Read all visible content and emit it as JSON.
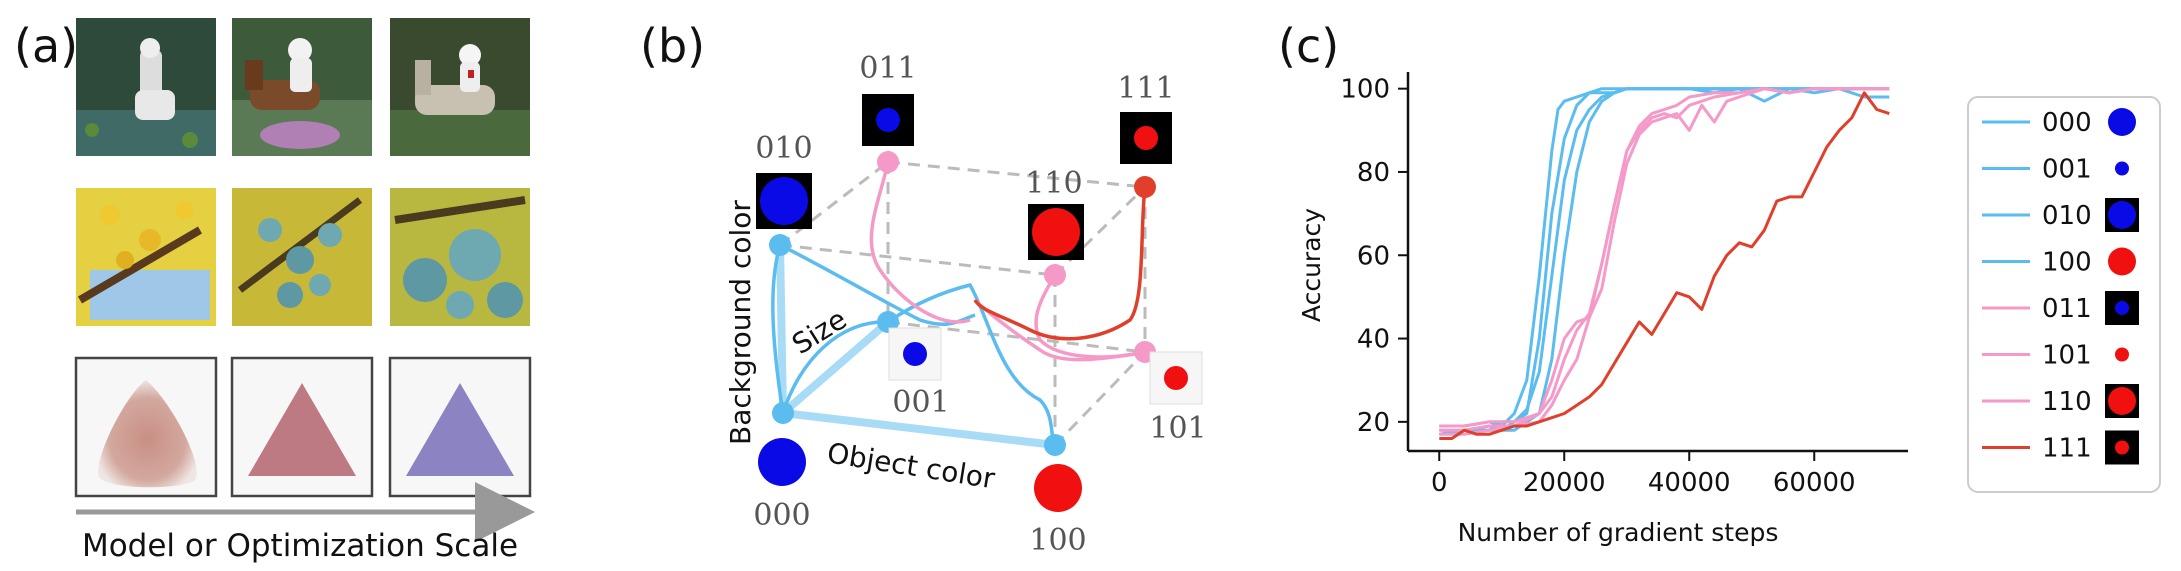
{
  "panels": {
    "a": {
      "label": "(a)",
      "caption": "Model or Optimization Scale"
    },
    "b": {
      "label": "(b)",
      "axis_size": "Size",
      "axis_background": "Background color",
      "axis_object": "Object color",
      "nodes": {
        "n000": "000",
        "n001": "001",
        "n010": "010",
        "n011": "011",
        "n100": "100",
        "n101": "101",
        "n110": "110",
        "n111": "111"
      }
    },
    "c": {
      "label": "(c)"
    }
  },
  "colors": {
    "blue_curve": "#5bbcf0",
    "pink_curve": "#f59ac8",
    "red_curve": "#e0402b",
    "node_blue": "#5bbcf0",
    "node_pink": "#f59ac8",
    "node_red": "#e0402b",
    "object_blue": "#0a0ae6",
    "object_red": "#f01010",
    "dashed": "#bbbbbb"
  },
  "chart_data": {
    "type": "line",
    "xlabel": "Number of gradient steps",
    "ylabel": "Accuracy",
    "xlim": [
      -5000,
      75000
    ],
    "ylim": [
      13,
      104
    ],
    "xticks": [
      "0",
      "20000",
      "40000",
      "60000"
    ],
    "yticks": [
      "20",
      "40",
      "60",
      "80",
      "100"
    ],
    "legend_position": "right",
    "series": [
      {
        "name": "000",
        "color": "#5bbcf0",
        "legend_icon": {
          "bg": "white",
          "dot": "blue",
          "size": "large"
        },
        "x": [
          0,
          4000,
          8000,
          10000,
          12000,
          14000,
          16000,
          18000,
          19000,
          20000,
          22000,
          24000,
          26000,
          28000,
          30000,
          40000,
          50000,
          60000,
          72000
        ],
        "y": [
          19,
          19,
          20,
          19,
          22,
          30,
          55,
          85,
          95,
          97,
          98,
          99,
          100,
          100,
          100,
          100,
          100,
          100,
          100
        ]
      },
      {
        "name": "001",
        "color": "#5bbcf0",
        "legend_icon": {
          "bg": "white",
          "dot": "blue",
          "size": "small"
        },
        "x": [
          0,
          4000,
          8000,
          10000,
          12000,
          14000,
          16000,
          18000,
          20000,
          22000,
          24000,
          26000,
          28000,
          30000,
          40000,
          50000,
          60000,
          72000
        ],
        "y": [
          17,
          18,
          18,
          20,
          20,
          22,
          40,
          70,
          88,
          96,
          99,
          99,
          99,
          100,
          100,
          100,
          100,
          100
        ]
      },
      {
        "name": "010",
        "color": "#5bbcf0",
        "legend_icon": {
          "bg": "black",
          "dot": "blue",
          "size": "large"
        },
        "x": [
          0,
          4000,
          8000,
          10000,
          12000,
          14000,
          16000,
          18000,
          20000,
          22000,
          24000,
          26000,
          28000,
          30000,
          40000,
          50000,
          60000,
          72000
        ],
        "y": [
          18,
          18,
          19,
          18,
          20,
          23,
          32,
          55,
          78,
          90,
          95,
          98,
          99,
          100,
          100,
          100,
          100,
          100
        ]
      },
      {
        "name": "100",
        "color": "#5bbcf0",
        "legend_icon": {
          "bg": "white",
          "dot": "red",
          "size": "large"
        },
        "x": [
          0,
          4000,
          8000,
          12000,
          16000,
          18000,
          20000,
          22000,
          24000,
          26000,
          28000,
          30000,
          34000,
          40000,
          44000,
          48000,
          52000,
          56000,
          60000,
          64000,
          68000,
          72000
        ],
        "y": [
          17,
          18,
          18,
          18,
          22,
          35,
          60,
          80,
          92,
          97,
          99,
          100,
          100,
          100,
          99,
          100,
          97,
          100,
          99,
          100,
          98,
          98
        ]
      },
      {
        "name": "011",
        "color": "#f59ac8",
        "legend_icon": {
          "bg": "black",
          "dot": "blue",
          "size": "small"
        },
        "x": [
          0,
          4000,
          8000,
          12000,
          16000,
          18000,
          20000,
          22000,
          24000,
          26000,
          28000,
          30000,
          32000,
          34000,
          36000,
          38000,
          40000,
          44000,
          48000,
          52000,
          56000,
          60000,
          72000
        ],
        "y": [
          19,
          19,
          20,
          20,
          22,
          26,
          35,
          42,
          46,
          58,
          72,
          85,
          91,
          94,
          95,
          96,
          98,
          99,
          99,
          100,
          99,
          100,
          100
        ]
      },
      {
        "name": "101",
        "color": "#f59ac8",
        "legend_icon": {
          "bg": "white",
          "dot": "red",
          "size": "small"
        },
        "x": [
          0,
          4000,
          8000,
          12000,
          16000,
          18000,
          20000,
          22000,
          24000,
          26000,
          28000,
          30000,
          32000,
          34000,
          36000,
          38000,
          40000,
          42000,
          44000,
          46000,
          48000,
          50000,
          52000,
          56000,
          60000,
          72000
        ],
        "y": [
          18,
          18,
          19,
          19,
          22,
          30,
          40,
          44,
          45,
          52,
          68,
          82,
          89,
          92,
          93,
          94,
          90,
          96,
          92,
          97,
          98,
          99,
          100,
          99,
          100,
          100
        ]
      },
      {
        "name": "110",
        "color": "#f59ac8",
        "legend_icon": {
          "bg": "black",
          "dot": "red",
          "size": "large"
        },
        "x": [
          0,
          4000,
          8000,
          12000,
          16000,
          18000,
          20000,
          22000,
          24000,
          26000,
          28000,
          30000,
          32000,
          34000,
          36000,
          38000,
          40000,
          42000,
          44000,
          48000,
          52000,
          56000,
          60000,
          72000
        ],
        "y": [
          17,
          17,
          18,
          19,
          20,
          24,
          30,
          35,
          45,
          58,
          72,
          85,
          90,
          93,
          94,
          93,
          96,
          97,
          98,
          99,
          100,
          99,
          100,
          100
        ]
      },
      {
        "name": "111",
        "color": "#e0402b",
        "legend_icon": {
          "bg": "black",
          "dot": "red",
          "size": "small"
        },
        "x": [
          0,
          2000,
          4000,
          6000,
          8000,
          10000,
          12000,
          14000,
          16000,
          18000,
          20000,
          22000,
          24000,
          26000,
          28000,
          30000,
          32000,
          34000,
          36000,
          38000,
          40000,
          42000,
          44000,
          46000,
          48000,
          50000,
          52000,
          54000,
          56000,
          58000,
          60000,
          62000,
          64000,
          66000,
          68000,
          70000,
          72000
        ],
        "y": [
          16,
          16,
          18,
          17,
          17,
          18,
          19,
          19,
          20,
          21,
          22,
          24,
          26,
          29,
          34,
          39,
          44,
          41,
          46,
          51,
          50,
          47,
          55,
          60,
          63,
          62,
          66,
          73,
          74,
          74,
          80,
          86,
          90,
          93,
          99,
          95,
          94
        ]
      }
    ]
  }
}
